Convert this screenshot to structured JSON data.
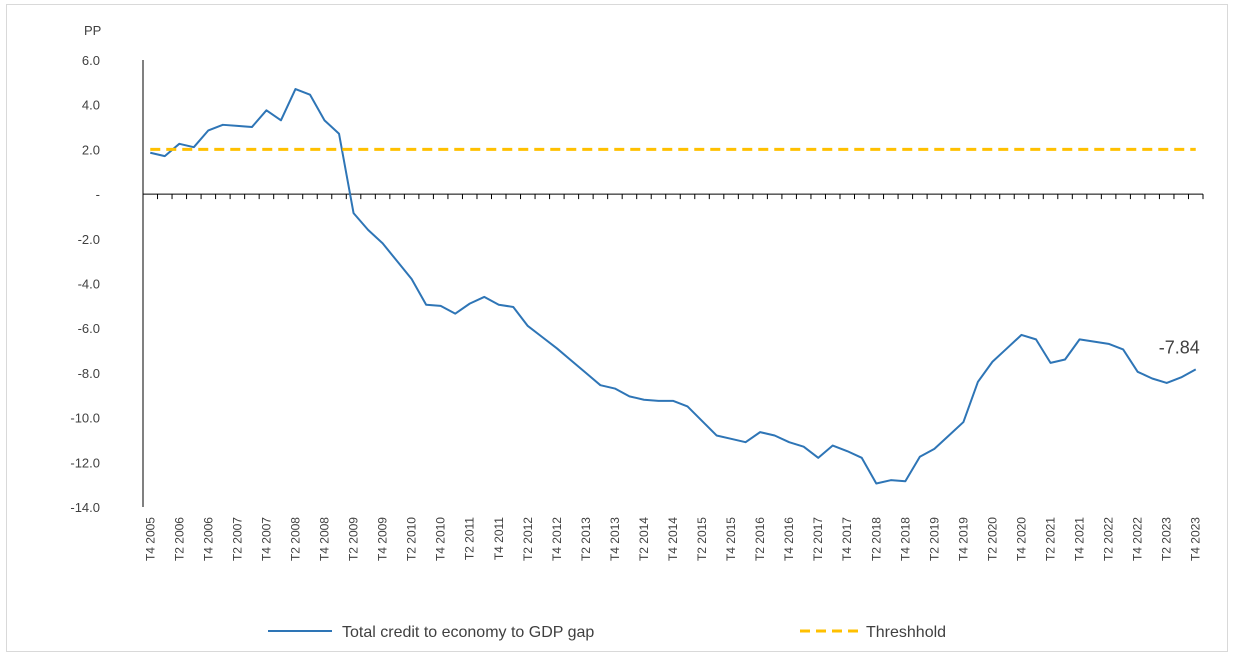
{
  "chart_data": {
    "type": "line",
    "title": "",
    "unit_label": "PP",
    "ylim": [
      -14,
      6
    ],
    "yticks": [
      6,
      4,
      2,
      0,
      -2,
      -4,
      -6,
      -8,
      -10,
      -12,
      -14
    ],
    "ytick_labels": [
      "6.0",
      "4.0",
      "2.0",
      "-",
      "-2.0",
      "-4.0",
      "-6.0",
      "-8.0",
      "-10.0",
      "-12.0",
      "-14.0"
    ],
    "x": [
      "T4 2005",
      "T1 2006",
      "T2 2006",
      "T3 2006",
      "T4 2006",
      "T1 2007",
      "T2 2007",
      "T3 2007",
      "T4 2007",
      "T1 2008",
      "T2 2008",
      "T3 2008",
      "T4 2008",
      "T1 2009",
      "T2 2009",
      "T3 2009",
      "T4 2009",
      "T1 2010",
      "T2 2010",
      "T3 2010",
      "T4 2010",
      "T1 2011",
      "T2 2011",
      "T3 2011",
      "T4 2011",
      "T1 2012",
      "T2 2012",
      "T3 2012",
      "T4 2012",
      "T1 2013",
      "T2 2013",
      "T3 2013",
      "T4 2013",
      "T1 2014",
      "T2 2014",
      "T3 2014",
      "T4 2014",
      "T1 2015",
      "T2 2015",
      "T3 2015",
      "T4 2015",
      "T1 2016",
      "T2 2016",
      "T3 2016",
      "T4 2016",
      "T1 2017",
      "T2 2017",
      "T3 2017",
      "T4 2017",
      "T1 2018",
      "T2 2018",
      "T3 2018",
      "T4 2018",
      "T1 2019",
      "T2 2019",
      "T3 2019",
      "T4 2019",
      "T1 2020",
      "T2 2020",
      "T3 2020",
      "T4 2020",
      "T1 2021",
      "T2 2021",
      "T3 2021",
      "T4 2021",
      "T1 2022",
      "T2 2022",
      "T3 2022",
      "T4 2022",
      "T1 2023",
      "T2 2023",
      "T3 2023",
      "T4 2023"
    ],
    "xtick_labels": [
      "T4 2005",
      "T2 2006",
      "T4 2006",
      "T2 2007",
      "T4 2007",
      "T2 2008",
      "T4 2008",
      "T2 2009",
      "T4 2009",
      "T2 2010",
      "T4 2010",
      "T2 2011",
      "T4 2011",
      "T2 2012",
      "T4 2012",
      "T2 2013",
      "T4 2013",
      "T2 2014",
      "T4 2014",
      "T2 2015",
      "T4 2015",
      "T2 2016",
      "T4 2016",
      "T2 2017",
      "T4 2017",
      "T2 2018",
      "T4 2018",
      "T2 2019",
      "T4 2019",
      "T2 2020",
      "T4 2020",
      "T2 2021",
      "T4 2021",
      "T2 2022",
      "T4 2022",
      "T2 2023",
      "T4 2023"
    ],
    "series": [
      {
        "name": "Total credit to economy to GDP gap",
        "color": "#2e75b6",
        "style": "solid",
        "values": [
          1.85,
          1.7,
          2.25,
          2.1,
          2.85,
          3.1,
          3.05,
          3.0,
          3.75,
          3.3,
          4.7,
          4.45,
          3.3,
          2.7,
          -0.85,
          -1.6,
          -2.2,
          -3.0,
          -3.8,
          -4.95,
          -5.0,
          -5.35,
          -4.9,
          -4.6,
          -4.95,
          -5.05,
          -5.9,
          -6.4,
          -6.9,
          -7.45,
          -8.0,
          -8.55,
          -8.7,
          -9.05,
          -9.2,
          -9.25,
          -9.25,
          -9.5,
          -10.15,
          -10.8,
          -10.95,
          -11.1,
          -10.65,
          -10.8,
          -11.1,
          -11.3,
          -11.8,
          -11.25,
          -11.5,
          -11.8,
          -12.95,
          -12.8,
          -12.85,
          -11.75,
          -11.4,
          -10.8,
          -10.2,
          -8.4,
          -7.5,
          -6.9,
          -6.3,
          -6.5,
          -7.55,
          -7.4,
          -6.5,
          -6.6,
          -6.7,
          -6.95,
          -7.95,
          -8.25,
          -8.45,
          -8.2,
          -7.84
        ]
      },
      {
        "name": "Threshhold",
        "color": "#ffc000",
        "style": "dashed",
        "values": [
          2,
          2,
          2,
          2,
          2,
          2,
          2,
          2,
          2,
          2,
          2,
          2,
          2,
          2,
          2,
          2,
          2,
          2,
          2,
          2,
          2,
          2,
          2,
          2,
          2,
          2,
          2,
          2,
          2,
          2,
          2,
          2,
          2,
          2,
          2,
          2,
          2,
          2,
          2,
          2,
          2,
          2,
          2,
          2,
          2,
          2,
          2,
          2,
          2,
          2,
          2,
          2,
          2,
          2,
          2,
          2,
          2,
          2,
          2,
          2,
          2,
          2,
          2,
          2,
          2,
          2,
          2,
          2,
          2,
          2,
          2,
          2,
          2
        ]
      }
    ],
    "annotations": [
      {
        "x": "T4 2023",
        "y": -7.84,
        "text": "-7.84"
      }
    ],
    "grid": false,
    "legend": "bottom"
  }
}
